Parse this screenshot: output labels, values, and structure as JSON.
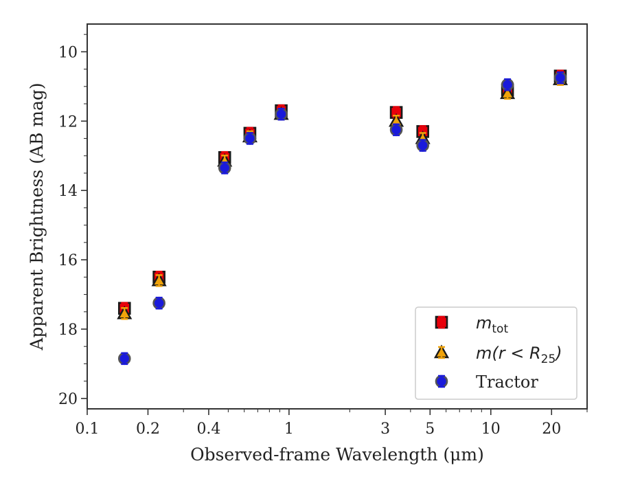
{
  "chart_data": {
    "type": "scatter",
    "title": "",
    "xlabel": "Observed-frame Wavelength (μm)",
    "ylabel": "Apparent Brightness (AB mag)",
    "x_scale": "log",
    "xlim": [
      0.1,
      30
    ],
    "ylim": [
      20.3,
      9.2
    ],
    "y_inverted": true,
    "x_ticks": [
      0.1,
      0.2,
      0.4,
      1,
      3,
      5,
      10,
      20
    ],
    "x_tick_labels": [
      "0.1",
      "0.2",
      "0.4",
      "1",
      "3",
      "5",
      "10",
      "20"
    ],
    "y_ticks": [
      10,
      12,
      14,
      16,
      18,
      20
    ],
    "y_tick_labels": [
      "10",
      "12",
      "14",
      "16",
      "18",
      "20"
    ],
    "grid": false,
    "legend_position": "lower-right",
    "series": [
      {
        "name": "m_tot",
        "label_base": "m",
        "label_sub": "tot",
        "marker": "square",
        "face_color": "#e8000b",
        "edge_color": "#1a1a1a",
        "errorbar_color": "#e8000b",
        "x": [
          0.153,
          0.227,
          0.48,
          0.64,
          0.915,
          3.4,
          4.6,
          12.1,
          22.1
        ],
        "y": [
          17.4,
          16.5,
          13.05,
          12.35,
          11.7,
          11.75,
          12.3,
          11.1,
          10.7
        ]
      },
      {
        "name": "m(r < R_25)",
        "label_text": "m(r < R",
        "label_sub": "25",
        "label_close": ")",
        "marker": "triangle",
        "face_color": "#f0a30a",
        "edge_color": "#1a1a1a",
        "errorbar_color": "#f0a30a",
        "x": [
          0.153,
          0.227,
          0.48,
          0.64,
          0.915,
          3.4,
          4.6,
          12.1,
          22.1
        ],
        "y": [
          17.55,
          16.6,
          13.15,
          12.45,
          11.8,
          12.0,
          12.5,
          11.2,
          10.8
        ]
      },
      {
        "name": "Tractor",
        "marker": "circle",
        "face_color": "#1a1adb",
        "edge_color": "#555555",
        "errorbar_color": "#1a1adb",
        "x": [
          0.153,
          0.227,
          0.48,
          0.64,
          0.915,
          3.4,
          4.6,
          12.1,
          22.1
        ],
        "y": [
          18.85,
          17.25,
          13.35,
          12.5,
          11.8,
          12.25,
          12.7,
          10.95,
          10.75
        ]
      }
    ]
  }
}
